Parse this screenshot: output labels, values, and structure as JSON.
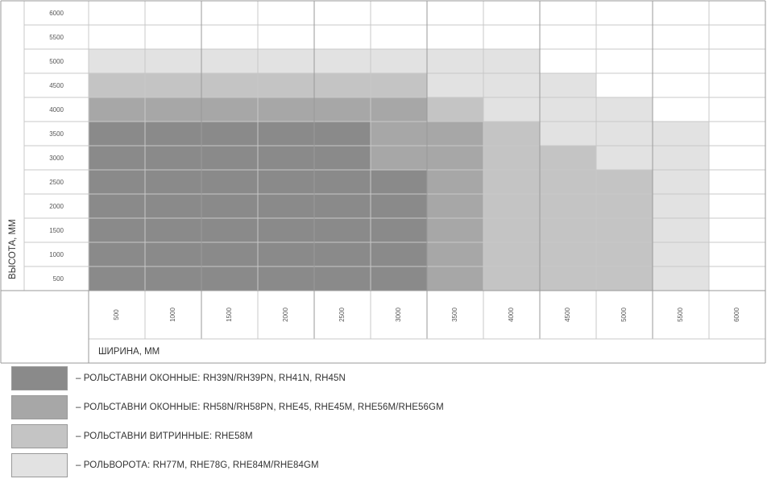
{
  "chart_data": {
    "type": "heatmap",
    "xlabel": "ШИРИНА, ММ",
    "ylabel": "ВЫСОТА, ММ",
    "x_ticks": [
      "500",
      "1000",
      "1500",
      "2000",
      "2500",
      "3000",
      "3500",
      "4000",
      "4500",
      "5000",
      "5500",
      "6000"
    ],
    "y_ticks": [
      "6000",
      "5500",
      "5000",
      "4500",
      "4000",
      "3500",
      "3000",
      "2500",
      "2000",
      "1500",
      "1000",
      "500"
    ],
    "cells": [
      [
        0,
        0,
        0,
        0,
        0,
        0,
        0,
        0,
        0,
        0,
        0,
        0
      ],
      [
        0,
        0,
        0,
        0,
        0,
        0,
        0,
        0,
        0,
        0,
        0,
        0
      ],
      [
        4,
        4,
        4,
        4,
        4,
        4,
        4,
        4,
        0,
        0,
        0,
        0
      ],
      [
        3,
        3,
        3,
        3,
        3,
        3,
        4,
        4,
        4,
        0,
        0,
        0
      ],
      [
        2,
        2,
        2,
        2,
        2,
        2,
        3,
        4,
        4,
        4,
        0,
        0
      ],
      [
        1,
        1,
        1,
        1,
        1,
        2,
        2,
        3,
        4,
        4,
        4,
        0
      ],
      [
        1,
        1,
        1,
        1,
        1,
        2,
        2,
        3,
        3,
        4,
        4,
        0
      ],
      [
        1,
        1,
        1,
        1,
        1,
        1,
        2,
        3,
        3,
        3,
        4,
        0
      ],
      [
        1,
        1,
        1,
        1,
        1,
        1,
        2,
        3,
        3,
        3,
        4,
        0
      ],
      [
        1,
        1,
        1,
        1,
        1,
        1,
        2,
        3,
        3,
        3,
        4,
        0
      ],
      [
        1,
        1,
        1,
        1,
        1,
        1,
        2,
        3,
        3,
        3,
        4,
        0
      ],
      [
        1,
        1,
        1,
        1,
        1,
        1,
        2,
        3,
        3,
        3,
        4,
        0
      ]
    ],
    "categories": [
      {
        "id": 1,
        "color": "#8a8a8a",
        "label": "– РОЛЬСТАВНИ ОКОННЫЕ: RH39N/RH39PN, RH41N, RH45N"
      },
      {
        "id": 2,
        "color": "#a7a7a7",
        "label": "– РОЛЬСТАВНИ ОКОННЫЕ: RH58N/RH58PN, RHE45, RHE45M, RHE56M/RHE56GM"
      },
      {
        "id": 3,
        "color": "#c4c4c4",
        "label": "– РОЛЬСТАВНИ ВИТРИННЫЕ: RHE58M"
      },
      {
        "id": 4,
        "color": "#e2e2e2",
        "label": "– РОЛЬВОРОТА: RH77M, RHE78G, RHE84M/RHE84GM"
      }
    ],
    "grid": true
  }
}
